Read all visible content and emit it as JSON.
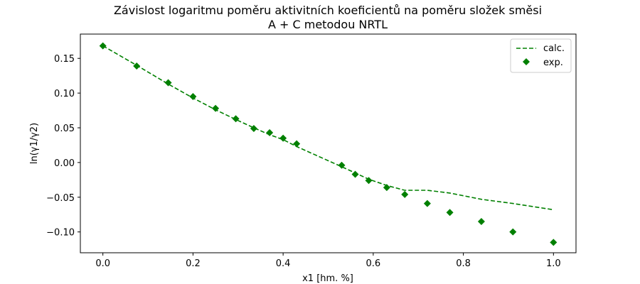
{
  "chart_data": {
    "type": "line",
    "title_line1": "Závislost logaritmu poměru aktivitních koeficientů na poměru složek směsi",
    "title_line2": "A + C metodou NRTL",
    "xlabel": "x1 [hm. %]",
    "ylabel": "ln(γ1/γ2)",
    "xlim": [
      -0.05,
      1.05
    ],
    "ylim": [
      -0.13,
      0.185
    ],
    "xticks": [
      0.0,
      0.2,
      0.4,
      0.6,
      0.8,
      1.0
    ],
    "xtick_labels": [
      "0.0",
      "0.2",
      "0.4",
      "0.6",
      "0.8",
      "1.0"
    ],
    "yticks": [
      0.15,
      0.1,
      0.05,
      0.0,
      -0.05,
      -0.1
    ],
    "ytick_labels": [
      "0.15",
      "0.10",
      "0.05",
      "0.00",
      "−0.05",
      "−0.10"
    ],
    "grid": false,
    "legend_position": "top-right",
    "color": "#008000",
    "series": [
      {
        "name": "calc.",
        "style": "dashed-line",
        "x": [
          0.0,
          0.075,
          0.145,
          0.2,
          0.25,
          0.295,
          0.335,
          0.37,
          0.4,
          0.43,
          0.53,
          0.56,
          0.59,
          0.63,
          0.67,
          0.72,
          0.77,
          0.84,
          0.91,
          1.0
        ],
        "y": [
          0.168,
          0.14,
          0.113,
          0.093,
          0.076,
          0.062,
          0.05,
          0.04,
          0.033,
          0.023,
          -0.006,
          -0.015,
          -0.024,
          -0.033,
          -0.04,
          -0.04,
          -0.044,
          -0.053,
          -0.059,
          -0.068
        ]
      },
      {
        "name": "exp.",
        "style": "diamond-markers",
        "x": [
          0.0,
          0.075,
          0.145,
          0.2,
          0.25,
          0.295,
          0.335,
          0.37,
          0.4,
          0.43,
          0.53,
          0.56,
          0.59,
          0.63,
          0.67,
          0.72,
          0.77,
          0.84,
          0.91,
          1.0
        ],
        "y": [
          0.168,
          0.139,
          0.115,
          0.095,
          0.078,
          0.063,
          0.049,
          0.043,
          0.035,
          0.027,
          -0.004,
          -0.017,
          -0.026,
          -0.036,
          -0.046,
          -0.059,
          -0.072,
          -0.085,
          -0.1,
          -0.115
        ]
      }
    ]
  }
}
